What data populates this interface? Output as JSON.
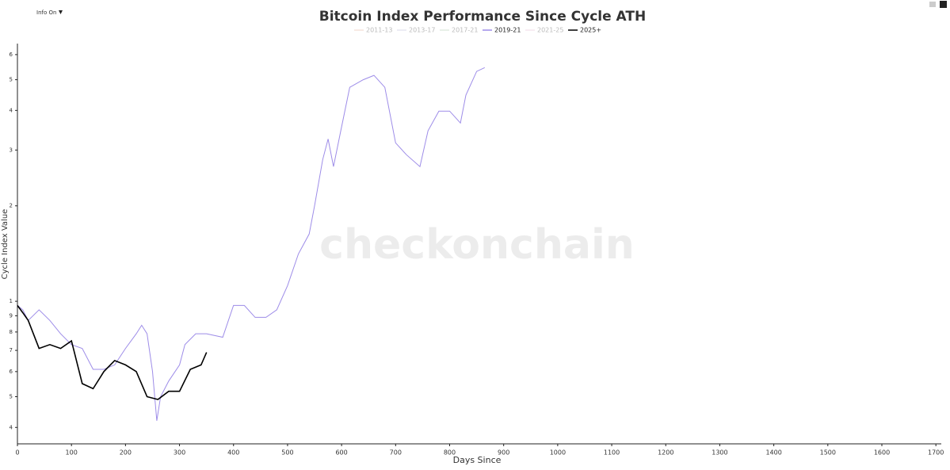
{
  "chart_data": {
    "type": "line",
    "title": "Bitcoin Index Performance Since Cycle ATH",
    "menu": "Info On",
    "watermark": "checkonchain",
    "x_label": "Days Since",
    "y_label": "Cycle Index Value",
    "log_y": true,
    "xlim": [
      0,
      1710
    ],
    "xticks": [
      0,
      100,
      200,
      300,
      400,
      500,
      600,
      700,
      800,
      900,
      1000,
      1100,
      1200,
      1300,
      1400,
      1500,
      1600,
      1700
    ],
    "ylim": [
      0.355,
      6.5
    ],
    "yticks": [
      {
        "value": 0.4,
        "label": "4"
      },
      {
        "value": 0.5,
        "label": "5"
      },
      {
        "value": 0.6,
        "label": "6"
      },
      {
        "value": 0.7,
        "label": "7"
      },
      {
        "value": 0.8,
        "label": "8"
      },
      {
        "value": 0.9,
        "label": "9"
      },
      1,
      2,
      3,
      4,
      5,
      6
    ],
    "series": [
      {
        "name": "2011-13",
        "color": "#f2d4c8",
        "hidden": true,
        "x": [],
        "values": []
      },
      {
        "name": "2013-17",
        "color": "#d8d8ea",
        "hidden": true,
        "x": [],
        "values": []
      },
      {
        "name": "2017-21",
        "color": "#d0e2d0",
        "hidden": true,
        "x": [],
        "values": []
      },
      {
        "name": "2019-21",
        "color": "#9d8ce8",
        "hidden": false,
        "x": [
          0,
          10,
          20,
          40,
          60,
          80,
          100,
          120,
          140,
          160,
          180,
          200,
          220,
          230,
          240,
          250,
          258,
          265,
          280,
          300,
          310,
          330,
          350,
          380,
          400,
          420,
          440,
          460,
          480,
          500,
          520,
          540,
          550,
          565,
          575,
          585,
          600,
          615,
          640,
          660,
          680,
          700,
          720,
          745,
          760,
          780,
          800,
          820,
          830,
          850,
          865
        ],
        "values": [
          0.97,
          0.94,
          0.87,
          0.94,
          0.87,
          0.79,
          0.73,
          0.71,
          0.61,
          0.61,
          0.63,
          0.71,
          0.79,
          0.84,
          0.79,
          0.6,
          0.42,
          0.5,
          0.56,
          0.63,
          0.73,
          0.79,
          0.79,
          0.77,
          0.97,
          0.97,
          0.89,
          0.89,
          0.94,
          1.12,
          1.41,
          1.63,
          2.0,
          2.8,
          3.25,
          2.66,
          3.55,
          4.73,
          5.0,
          5.16,
          4.73,
          3.16,
          2.9,
          2.66,
          3.45,
          3.98,
          3.98,
          3.65,
          4.47,
          5.31,
          5.46
        ]
      },
      {
        "name": "2021-25",
        "color": "#f0d8e4",
        "hidden": true,
        "x": [],
        "values": []
      },
      {
        "name": "2025+",
        "color": "#000000",
        "hidden": false,
        "x": [
          0,
          10,
          20,
          40,
          60,
          80,
          100,
          120,
          140,
          160,
          180,
          200,
          220,
          240,
          260,
          280,
          300,
          320,
          340,
          350
        ],
        "values": [
          0.97,
          0.92,
          0.87,
          0.71,
          0.73,
          0.71,
          0.75,
          0.55,
          0.53,
          0.6,
          0.65,
          0.63,
          0.6,
          0.5,
          0.49,
          0.52,
          0.52,
          0.61,
          0.63,
          0.69
        ]
      }
    ]
  }
}
